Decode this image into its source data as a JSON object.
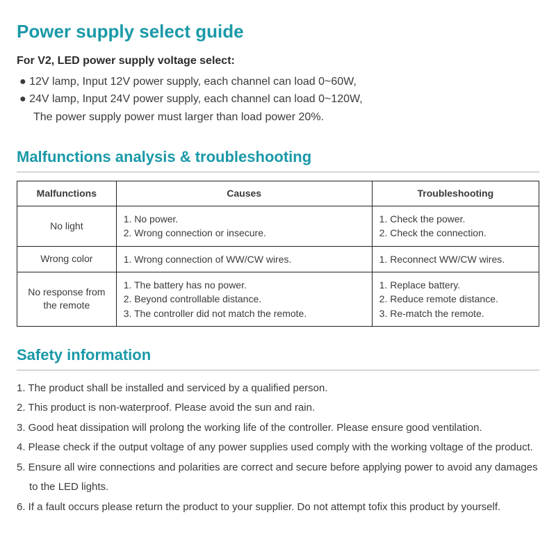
{
  "power_guide": {
    "title": "Power supply select guide",
    "subtitle": "For V2, LED power supply voltage select:",
    "bullets": [
      "12V lamp, Input 12V power supply, each channel can load 0~60W,",
      "24V lamp, Input 24V power supply, each channel can load 0~120W,"
    ],
    "note": "The power supply power must larger than load power 20%."
  },
  "malfunctions": {
    "title": "Malfunctions analysis & troubleshooting",
    "headers": {
      "c0": "Malfunctions",
      "c1": "Causes",
      "c2": "Troubleshooting"
    },
    "rows": [
      {
        "malf": "No light",
        "causes": [
          "1. No power.",
          "2. Wrong connection or insecure."
        ],
        "trouble": [
          "1. Check the power.",
          "2. Check the connection."
        ]
      },
      {
        "malf": "Wrong color",
        "causes": [
          "1. Wrong connection of WW/CW wires."
        ],
        "trouble": [
          "1. Reconnect WW/CW wires."
        ]
      },
      {
        "malf": "No response from the remote",
        "causes": [
          "1. The battery has no power.",
          "2. Beyond controllable distance.",
          "3. The controller did not match the remote."
        ],
        "trouble": [
          "1. Replace battery.",
          "2. Reduce remote distance.",
          "3. Re-match the remote."
        ]
      }
    ]
  },
  "safety": {
    "title": "Safety information",
    "items": [
      "1. The product shall be installed and serviced by a qualified person.",
      "2. This product is non-waterproof. Please avoid the sun and rain.",
      "3. Good heat dissipation will prolong the working life of the controller. Please ensure good ventilation.",
      "4. Please check if the output voltage of any power supplies used comply with the working voltage of the product.",
      "5. Ensure all wire connections and polarities are correct and secure before applying power to avoid any damages to the LED lights.",
      "6. If a fault occurs please return the product to your supplier. Do not attempt tofix this product by yourself."
    ]
  },
  "colors": {
    "heading": "#1a99a8",
    "text": "#3a3a3a",
    "rule": "#aeb2b4",
    "border": "#222222",
    "background": "#ffffff"
  }
}
